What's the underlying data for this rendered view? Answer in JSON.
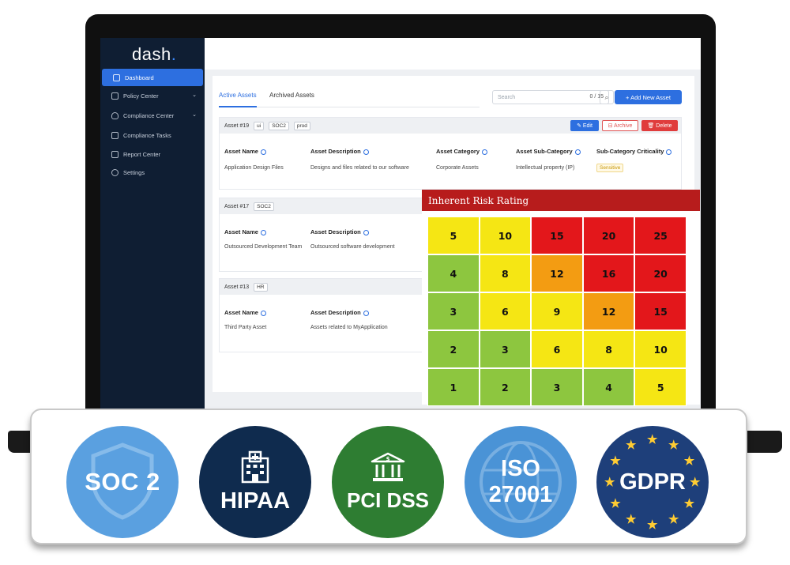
{
  "app": {
    "logo": "dash"
  },
  "sidebar": {
    "items": [
      {
        "label": "Dashboard",
        "icon": "monitor-icon",
        "active": true
      },
      {
        "label": "Policy Center",
        "icon": "document-icon",
        "chevron": true
      },
      {
        "label": "Compliance Center",
        "icon": "shield-icon",
        "chevron": true
      },
      {
        "label": "Compliance Tasks",
        "icon": "checkbox-icon"
      },
      {
        "label": "Report Center",
        "icon": "folder-icon"
      },
      {
        "label": "Settings",
        "icon": "gear-icon"
      }
    ]
  },
  "main": {
    "tabs": [
      {
        "label": "Active Assets"
      },
      {
        "label": "Archived Assets"
      }
    ],
    "search": {
      "placeholder": "Search",
      "count": "0 / 15"
    },
    "add_button": "+  Add New Asset",
    "actions": {
      "edit": "✎ Edit",
      "archive": "⊟ Archive",
      "delete": "🗑 Delete"
    },
    "assets": [
      {
        "id": "Asset #19",
        "tags": [
          "ui",
          "SOC2",
          "prod"
        ],
        "name_label": "Asset Name",
        "name": "Application Design Files",
        "desc_label": "Asset Description",
        "desc": "Designs and files related to our software",
        "cat_label": "Asset Category",
        "cat": "Corporate Assets",
        "subcat_label": "Asset Sub-Category",
        "subcat": "Intellectual property (IP)",
        "crit_label": "Sub-Category Criticality",
        "crit": "Sensitive"
      },
      {
        "id": "Asset #17",
        "tags": [
          "SOC2"
        ],
        "name_label": "Asset Name",
        "name": "Outsourced Development Team",
        "desc_label": "Asset Description",
        "desc": "Outsourced software development"
      },
      {
        "id": "Asset #13",
        "tags": [
          "HR"
        ],
        "name_label": "Asset Name",
        "name": "Third Party Asset",
        "desc_label": "Asset Description",
        "desc": "Assets related to MyApplication"
      }
    ]
  },
  "risk_matrix": {
    "title": "Inherent Risk Rating",
    "rows": [
      [
        5,
        10,
        15,
        20,
        25
      ],
      [
        4,
        8,
        12,
        16,
        20
      ],
      [
        3,
        6,
        9,
        12,
        15
      ],
      [
        2,
        3,
        6,
        8,
        10
      ],
      [
        1,
        2,
        3,
        4,
        5
      ]
    ],
    "colors": {
      "green": "#8dc63f",
      "yellow": "#f5e614",
      "orange": "#f39c12",
      "red": "#e3171b"
    }
  },
  "certifications": [
    {
      "label": "SOC 2",
      "icon": "shield-icon",
      "color": "#5aa0e0"
    },
    {
      "label": "HIPAA",
      "icon": "hospital-icon",
      "color": "#0f2b4e"
    },
    {
      "label": "PCI DSS",
      "icon": "bank-icon",
      "color": "#2e7d32"
    },
    {
      "line1": "ISO",
      "line2": "27001",
      "icon": "globe-icon",
      "color": "#4a93d6"
    },
    {
      "label": "GDPR",
      "icon": "eu-stars-icon",
      "color": "#1e3f7a"
    }
  ]
}
